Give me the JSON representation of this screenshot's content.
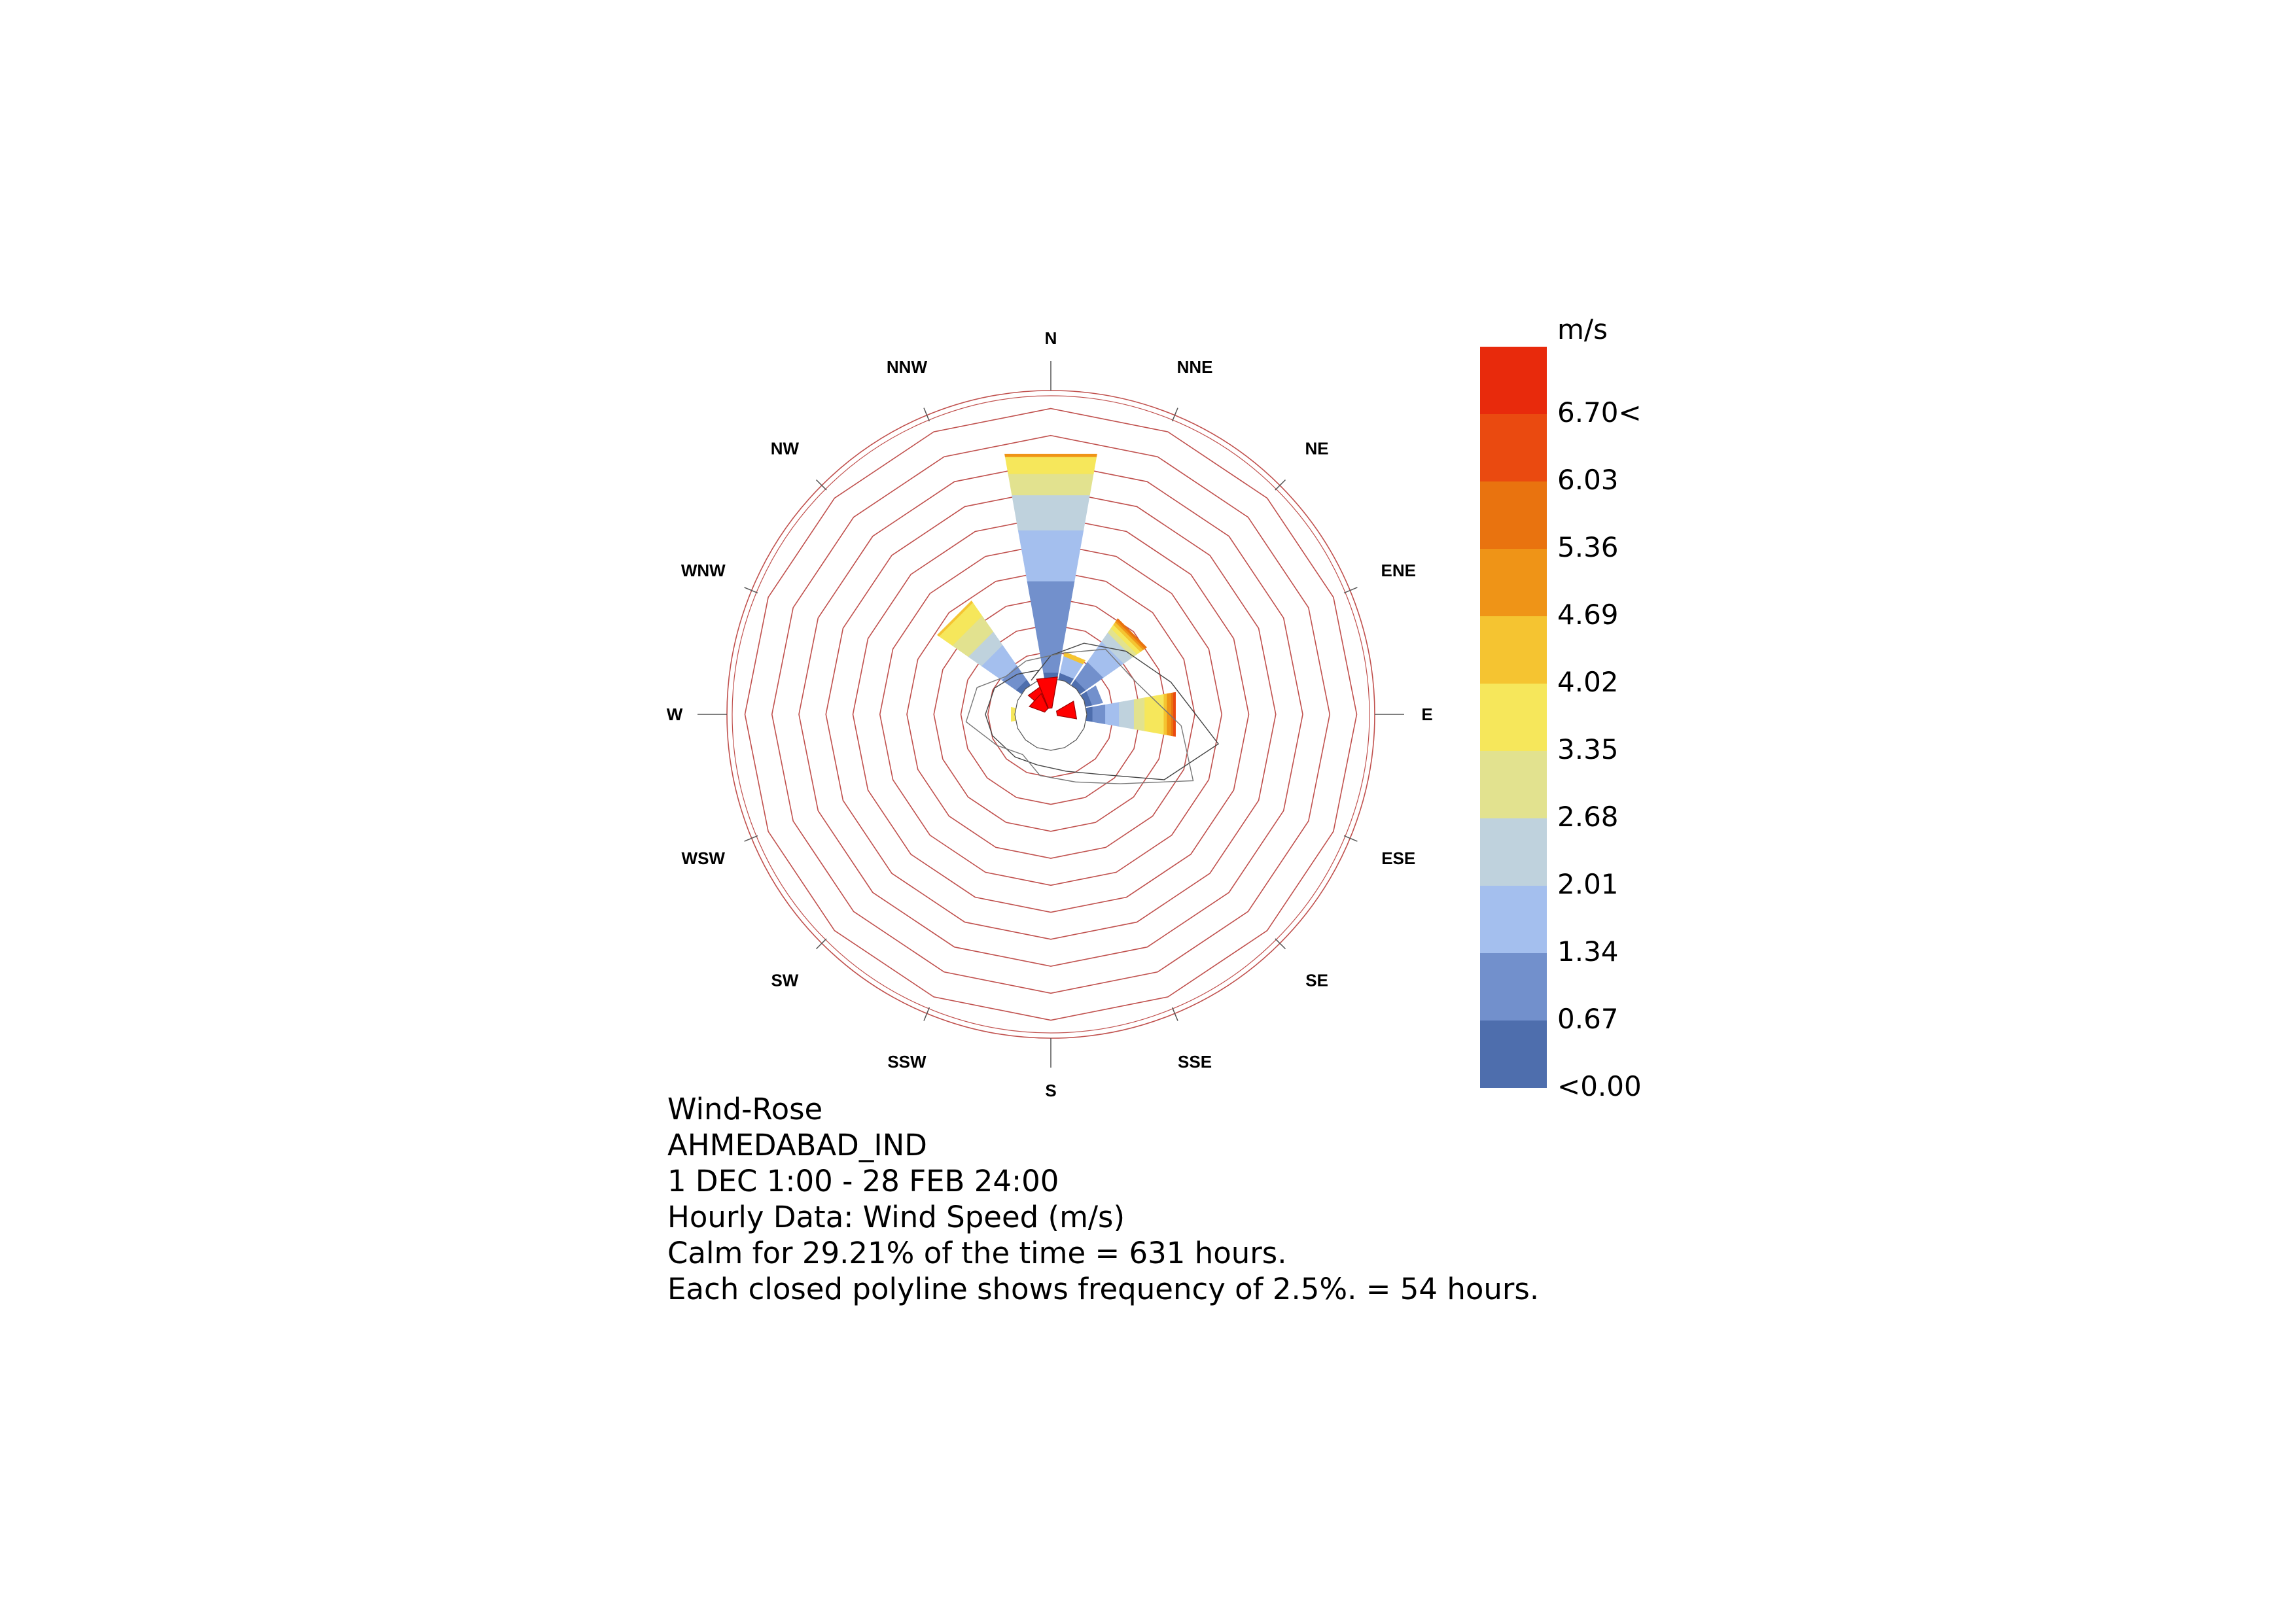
{
  "chart_data": {
    "type": "wind-rose",
    "directions": [
      "N",
      "NNE",
      "NE",
      "ENE",
      "E",
      "ESE",
      "SE",
      "SSE",
      "S",
      "SSW",
      "SW",
      "WSW",
      "W",
      "WNW",
      "NW",
      "NNW"
    ],
    "legend": {
      "unit": "m/s",
      "labels": [
        "6.70<",
        "6.03",
        "5.36",
        "4.69",
        "4.02",
        "3.35",
        "2.68",
        "2.01",
        "1.34",
        "0.67",
        "<0.00"
      ],
      "colors": [
        "#e82a0c",
        "#ea4a10",
        "#e9730f",
        "#ef9417",
        "#f5c431",
        "#f6e75b",
        "#e2e28f",
        "#bfd2dd",
        "#a4bfee",
        "#7290cc",
        "#4e6ead"
      ]
    },
    "frequency_step_percent": 2.5,
    "max_frequency_percent": 25,
    "calm_percent": 29.21,
    "series": [
      {
        "direction": "N",
        "bins": [
          {
            "speed_bin": "<0.00",
            "percent": 0.6
          },
          {
            "speed_bin": "0.67",
            "percent": 8.6
          },
          {
            "speed_bin": "1.34",
            "percent": 4.8
          },
          {
            "speed_bin": "2.01",
            "percent": 3.3
          },
          {
            "speed_bin": "2.68",
            "percent": 2.0
          },
          {
            "speed_bin": "3.35",
            "percent": 1.6
          },
          {
            "speed_bin": "4.69",
            "percent": 0.25
          }
        ]
      },
      {
        "direction": "NE",
        "bins": [
          {
            "speed_bin": "<0.00",
            "percent": 0.6
          },
          {
            "speed_bin": "0.67",
            "percent": 2.0
          },
          {
            "speed_bin": "1.34",
            "percent": 2.3
          },
          {
            "speed_bin": "2.01",
            "percent": 1.0
          },
          {
            "speed_bin": "2.68",
            "percent": 0.5
          },
          {
            "speed_bin": "3.35",
            "percent": 0.4
          },
          {
            "speed_bin": "4.02",
            "percent": 0.3
          },
          {
            "speed_bin": "4.69",
            "percent": 0.2
          },
          {
            "speed_bin": "5.36",
            "percent": 0.2
          }
        ]
      },
      {
        "direction": "E",
        "bins": [
          {
            "speed_bin": "<0.00",
            "percent": 0.6
          },
          {
            "speed_bin": "0.67",
            "percent": 1.2
          },
          {
            "speed_bin": "1.34",
            "percent": 1.3
          },
          {
            "speed_bin": "2.01",
            "percent": 1.4
          },
          {
            "speed_bin": "2.68",
            "percent": 1.0
          },
          {
            "speed_bin": "3.35",
            "percent": 1.8
          },
          {
            "speed_bin": "4.02",
            "percent": 0.3
          },
          {
            "speed_bin": "4.69",
            "percent": 0.4
          },
          {
            "speed_bin": "5.36",
            "percent": 0.2
          },
          {
            "speed_bin": "6.03",
            "percent": 0.2
          }
        ]
      },
      {
        "direction": "NW",
        "bins": [
          {
            "speed_bin": "<0.00",
            "percent": 0.6
          },
          {
            "speed_bin": "0.67",
            "percent": 1.6
          },
          {
            "speed_bin": "1.34",
            "percent": 2.3
          },
          {
            "speed_bin": "2.01",
            "percent": 1.5
          },
          {
            "speed_bin": "2.68",
            "percent": 1.8
          },
          {
            "speed_bin": "3.35",
            "percent": 1.5
          },
          {
            "speed_bin": "4.02",
            "percent": 0.2
          }
        ]
      },
      {
        "direction": "NNE",
        "bins": [
          {
            "speed_bin": "<0.00",
            "percent": 0.6
          },
          {
            "speed_bin": "1.34",
            "percent": 1.6
          },
          {
            "speed_bin": "4.02",
            "percent": 0.4
          }
        ]
      },
      {
        "direction": "ENE",
        "bins": [
          {
            "speed_bin": "<0.00",
            "percent": 0.6
          },
          {
            "speed_bin": "0.67",
            "percent": 1.0
          }
        ]
      },
      {
        "direction": "W",
        "bins": [
          {
            "speed_bin": "3.35",
            "percent": 0.4
          }
        ]
      }
    ],
    "calm_hub": "red octagon"
  },
  "caption": {
    "line1": "Wind-Rose",
    "line2": "AHMEDABAD_IND",
    "line3": "1 DEC 1:00 - 28 FEB 24:00",
    "line4": "Hourly Data: Wind Speed (m/s)",
    "line5": "Calm for 29.21% of the time = 631 hours.",
    "line6": "Each closed polyline shows frequency of 2.5%. = 54 hours."
  }
}
